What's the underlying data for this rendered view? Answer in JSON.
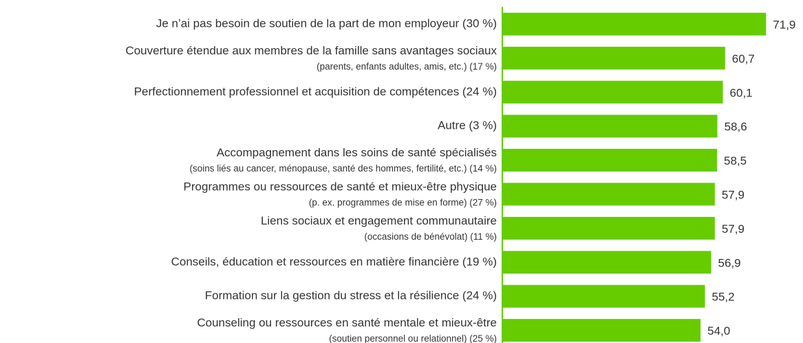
{
  "chart_data": {
    "type": "barh",
    "categories": [
      [
        "Je n’ai pas besoin de soutien de la part de mon employeur (30 %)"
      ],
      [
        "Couverture étendue aux membres de la famille sans avantages sociaux",
        "(parents, enfants adultes, amis, etc.) (17 %)"
      ],
      [
        "Perfectionnement professionnel et acquisition de compétences (24 %)"
      ],
      [
        "Autre (3 %)"
      ],
      [
        "Accompagnement dans les soins de santé spécialisés",
        "(soins liés au cancer, ménopause, santé des hommes, fertilité, etc.) (14 %)"
      ],
      [
        "Programmes ou ressources de santé et mieux-être physique",
        "(p. ex. programmes de mise en forme) (27 %)"
      ],
      [
        "Liens sociaux et engagement communautaire",
        "(occasions de bénévolat) (11 %)"
      ],
      [
        "Conseils, éducation et ressources en matière financière (19 %)"
      ],
      [
        "Formation sur la gestion du stress et la résilience (24 %)"
      ],
      [
        "Counseling ou ressources en santé mentale et mieux-être",
        "(soutien personnel ou relationnel) (25 %)"
      ]
    ],
    "values": [
      71.9,
      60.7,
      60.1,
      58.6,
      58.5,
      57.9,
      57.9,
      56.9,
      55.2,
      54.0
    ],
    "value_labels": [
      "71,9",
      "60,7",
      "60,1",
      "58,6",
      "58,5",
      "57,9",
      "57,9",
      "56,9",
      "55,2",
      "54,0"
    ],
    "color": "#66cc00",
    "xlim": [
      0,
      82
    ]
  }
}
